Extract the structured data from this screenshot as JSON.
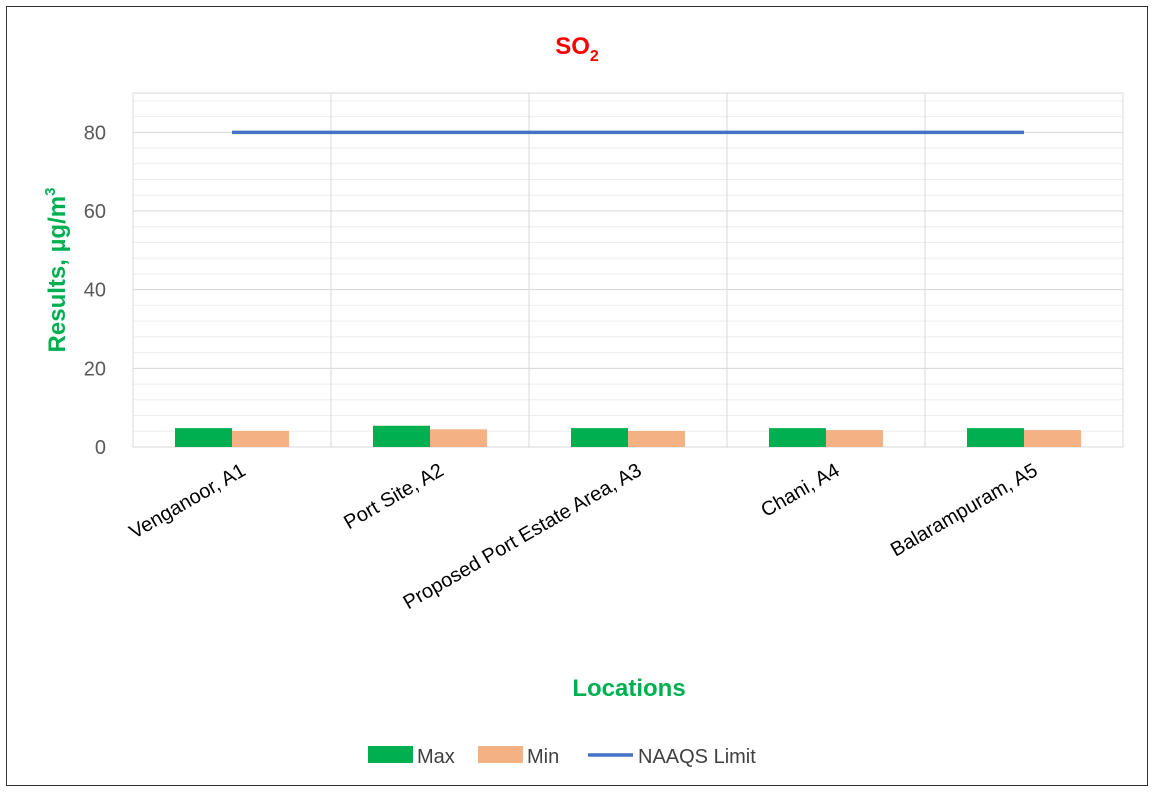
{
  "chart_data": {
    "type": "bar",
    "title": "SO",
    "title_subscript": "2",
    "xlabel": "Locations",
    "ylabel": "Results, µg/m",
    "ylabel_superscript": "3",
    "categories": [
      "Venganoor, A1",
      "Port Site, A2",
      "Proposed Port Estate Area, A3",
      "Chani, A4",
      "Balarampuram, A5"
    ],
    "series": [
      {
        "name": "Max",
        "type": "bar",
        "color": "#00b050",
        "values": [
          4.8,
          5.4,
          4.8,
          4.8,
          4.8
        ]
      },
      {
        "name": "Min",
        "type": "bar",
        "color": "#f4b183",
        "values": [
          4.1,
          4.5,
          4.1,
          4.3,
          4.3
        ]
      },
      {
        "name": "NAAQS Limit",
        "type": "line",
        "color": "#4472c4",
        "values": [
          80,
          80,
          80,
          80,
          80
        ]
      }
    ],
    "ylim": [
      0,
      90
    ],
    "yticks": [
      0,
      20,
      40,
      60,
      80
    ],
    "grid": true,
    "legend_position": "bottom"
  }
}
